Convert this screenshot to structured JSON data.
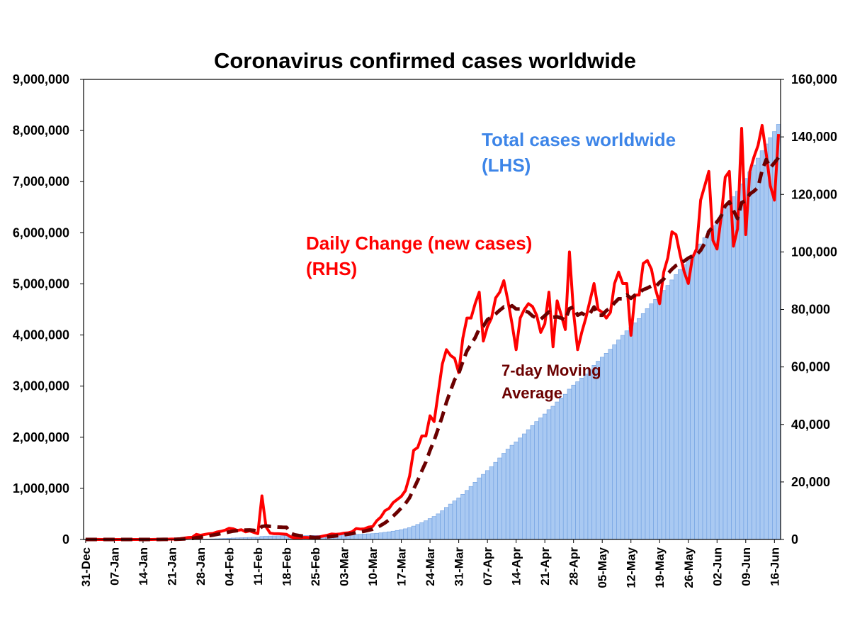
{
  "chart_data": {
    "type": "combo",
    "title": "Coronavirus confirmed cases worldwide",
    "categories": [
      "31-Dec",
      null,
      null,
      null,
      null,
      null,
      null,
      "07-Jan",
      null,
      null,
      null,
      null,
      null,
      null,
      "14-Jan",
      null,
      null,
      null,
      null,
      null,
      null,
      "21-Jan",
      null,
      null,
      null,
      null,
      null,
      null,
      "28-Jan",
      null,
      null,
      null,
      null,
      null,
      null,
      "04-Feb",
      null,
      null,
      null,
      null,
      null,
      null,
      "11-Feb",
      null,
      null,
      null,
      null,
      null,
      null,
      "18-Feb",
      null,
      null,
      null,
      null,
      null,
      null,
      "25-Feb",
      null,
      null,
      null,
      null,
      null,
      null,
      "03-Mar",
      null,
      null,
      null,
      null,
      null,
      null,
      "10-Mar",
      null,
      null,
      null,
      null,
      null,
      null,
      "17-Mar",
      null,
      null,
      null,
      null,
      null,
      null,
      "24-Mar",
      null,
      null,
      null,
      null,
      null,
      null,
      "31-Mar",
      null,
      null,
      null,
      null,
      null,
      null,
      "07-Apr",
      null,
      null,
      null,
      null,
      null,
      null,
      "14-Apr",
      null,
      null,
      null,
      null,
      null,
      null,
      "21-Apr",
      null,
      null,
      null,
      null,
      null,
      null,
      "28-Apr",
      null,
      null,
      null,
      null,
      null,
      null,
      "05-May",
      null,
      null,
      null,
      null,
      null,
      null,
      "12-May",
      null,
      null,
      null,
      null,
      null,
      null,
      "19-May",
      null,
      null,
      null,
      null,
      null,
      null,
      "26-May",
      null,
      null,
      null,
      null,
      null,
      null,
      "02-Jun",
      null,
      null,
      null,
      null,
      null,
      null,
      "09-Jun",
      null,
      null,
      null,
      null,
      null,
      null,
      "16-Jun",
      null
    ],
    "series": [
      {
        "name": [
          "Total cases worldwide",
          "(LHS)"
        ],
        "type": "bar",
        "axis": "y",
        "color": "#a9c9f2",
        "edge": "#6f9fe0",
        "label_color": "#3d85e8",
        "values": [
          27,
          27,
          27,
          44,
          44,
          59,
          59,
          59,
          59,
          59,
          59,
          41,
          41,
          41,
          41,
          41,
          45,
          62,
          121,
          198,
          282,
          440,
          571,
          830,
          1297,
          1985,
          2761,
          4537,
          5995,
          7734,
          9720,
          11821,
          14411,
          17238,
          20471,
          24363,
          28060,
          31211,
          34598,
          37251,
          40235,
          42708,
          44730,
          59895,
          64300,
          66500,
          68500,
          70500,
          72400,
          74200,
          75100,
          75600,
          76000,
          76700,
          77400,
          78000,
          78800,
          79700,
          80900,
          82400,
          84300,
          86100,
          88000,
          90200,
          92500,
          95200,
          99000,
          102600,
          106300,
          110600,
          115100,
          121600,
          129400,
          139400,
          150200,
          163000,
          176900,
          191900,
          208900,
          230900,
          261900,
          293900,
          329900,
          365900,
          408900,
          449900,
          500900,
          561900,
          627900,
          691900,
          754900,
          812900,
          882900,
          959900,
          1036900,
          1118900,
          1204900,
          1273900,
          1347900,
          1424900,
          1508900,
          1594900,
          1684900,
          1767900,
          1842900,
          1908900,
          1985900,
          2065900,
          2147900,
          2228900,
          2306900,
          2378900,
          2453900,
          2539900,
          2606900,
          2689900,
          2767900,
          2840900,
          2940900,
          3019900,
          3085900,
          3157900,
          3234900,
          3317900,
          3406900,
          3486900,
          3565900,
          3642900,
          3721900,
          3810900,
          3903900,
          3992900,
          4081900,
          4152900,
          4237900,
          4322900,
          4418900,
          4515900,
          4609900,
          4696900,
          4778900,
          4871900,
          4969900,
          5076900,
          5182900,
          5281900,
          5374900,
          5463900,
          5561900,
          5662900,
          5780900,
          5903900,
          6031900,
          6135900,
          6236900,
          6348900,
          6474900,
          6602900,
          6704900,
          6812900,
          6955900,
          7061900,
          7189900,
          7322900,
          7459900,
          7603900,
          7737900,
          7860900,
          7978900,
          8119900
        ]
      },
      {
        "name": [
          "Daily Change (new cases)",
          "(RHS)"
        ],
        "type": "line",
        "axis": "y2",
        "color": "#ff0000",
        "label_color": "#ff0000",
        "values": [
          0,
          0,
          0,
          17,
          0,
          15,
          0,
          0,
          0,
          0,
          0,
          0,
          0,
          0,
          0,
          0,
          4,
          17,
          59,
          77,
          84,
          158,
          131,
          259,
          467,
          688,
          776,
          1776,
          1458,
          1739,
          1986,
          2101,
          2590,
          2827,
          3233,
          3892,
          3697,
          3151,
          3387,
          2653,
          2984,
          2473,
          2022,
          15165,
          4405,
          2200,
          2000,
          2000,
          1900,
          1800,
          900,
          500,
          400,
          700,
          700,
          600,
          800,
          900,
          1200,
          1500,
          1900,
          1800,
          1900,
          2200,
          2300,
          2700,
          3800,
          3600,
          3700,
          4300,
          4500,
          6500,
          7800,
          10000,
          10800,
          12800,
          13900,
          15000,
          17000,
          22000,
          31000,
          32000,
          36000,
          36000,
          43000,
          41000,
          51000,
          61000,
          66000,
          64000,
          63000,
          58000,
          70000,
          77000,
          77000,
          82000,
          86000,
          69000,
          74000,
          77000,
          84000,
          86000,
          90000,
          83000,
          75000,
          66000,
          77000,
          80000,
          82000,
          81000,
          78000,
          72000,
          75000,
          86000,
          67000,
          83000,
          78000,
          73000,
          100000,
          79000,
          66000,
          72000,
          77000,
          83000,
          89000,
          80000,
          79000,
          77000,
          79000,
          89000,
          93000,
          89000,
          89000,
          71000,
          85000,
          85000,
          96000,
          97000,
          94000,
          87000,
          82000,
          93000,
          98000,
          107000,
          106000,
          99000,
          93000,
          89000,
          98000,
          101000,
          118000,
          123000,
          128000,
          104000,
          101000,
          112000,
          126000,
          128000,
          102000,
          108000,
          143000,
          106000,
          128000,
          133000,
          137000,
          144000,
          134000,
          123000,
          118000,
          141000
        ]
      },
      {
        "name": [
          "7-day Moving",
          "Average"
        ],
        "type": "line",
        "axis": "y2",
        "color": "#6b0000",
        "dashed": true,
        "label_color": "#6b0000",
        "values": [
          0,
          0,
          0,
          2,
          2,
          5,
          5,
          5,
          5,
          5,
          5,
          2,
          0,
          0,
          0,
          0,
          0,
          3,
          11,
          22,
          34,
          57,
          76,
          112,
          176,
          266,
          366,
          608,
          794,
          1023,
          1270,
          1503,
          1775,
          2068,
          2276,
          2624,
          2904,
          3070,
          3254,
          3263,
          3285,
          3177,
          2910,
          4548,
          4727,
          4557,
          4464,
          4324,
          4242,
          4210,
          2172,
          1614,
          1357,
          1171,
          986,
          800,
          657,
          657,
          757,
          914,
          1086,
          1243,
          1429,
          1629,
          1829,
          2043,
          2371,
          2614,
          2886,
          3229,
          3557,
          4157,
          4886,
          5771,
          6800,
          8100,
          9471,
          10971,
          12471,
          14500,
          17500,
          20529,
          23843,
          27000,
          31000,
          34429,
          38571,
          42857,
          47714,
          51714,
          55571,
          57714,
          61857,
          65571,
          67857,
          70143,
          73286,
          74143,
          76429,
          77429,
          78429,
          79714,
          80857,
          80429,
          81286,
          80143,
          80143,
          79571,
          79000,
          77714,
          77000,
          76571,
          77857,
          79143,
          77286,
          77429,
          77000,
          76286,
          80286,
          80857,
          78000,
          78714,
          77857,
          78571,
          80857,
          78000,
          78000,
          79571,
          80571,
          82286,
          83714,
          83714,
          85000,
          83857,
          85000,
          85857,
          86857,
          87429,
          88143,
          87857,
          89429,
          90571,
          92429,
          94000,
          95286,
          96000,
          96857,
          97857,
          98571,
          99000,
          100571,
          103000,
          107143,
          108714,
          110429,
          112429,
          116000,
          117429,
          114429,
          111571,
          117143,
          117857,
          120143,
          121143,
          122429,
          128429,
          132143,
          129286,
          131000,
          132857
        ]
      }
    ],
    "ylim": [
      0,
      9000000
    ],
    "yticks": [
      0,
      {
        "value": 1000000,
        "label": "1,000,000"
      },
      {
        "value": 2000000,
        "label": "2,000,000"
      },
      {
        "value": 3000000,
        "label": "3,000,000"
      },
      {
        "value": 4000000,
        "label": "4,000,000"
      },
      {
        "value": 5000000,
        "label": "5,000,000"
      },
      {
        "value": 6000000,
        "label": "6,000,000"
      },
      {
        "value": 7000000,
        "label": "7,000,000"
      },
      {
        "value": 8000000,
        "label": "8,000,000"
      },
      {
        "value": 9000000,
        "label": "9,000,000"
      }
    ],
    "y2lim": [
      0,
      160000
    ],
    "y2ticks": [
      0,
      {
        "value": 20000,
        "label": "20,000"
      },
      {
        "value": 40000,
        "label": "40,000"
      },
      {
        "value": 60000,
        "label": "60,000"
      },
      {
        "value": 80000,
        "label": "80,000"
      },
      {
        "value": 100000,
        "label": "100,000"
      },
      {
        "value": 120000,
        "label": "120,000"
      },
      {
        "value": 140000,
        "label": "140,000"
      },
      {
        "value": 160000,
        "label": "160,000"
      }
    ],
    "grid": false
  }
}
